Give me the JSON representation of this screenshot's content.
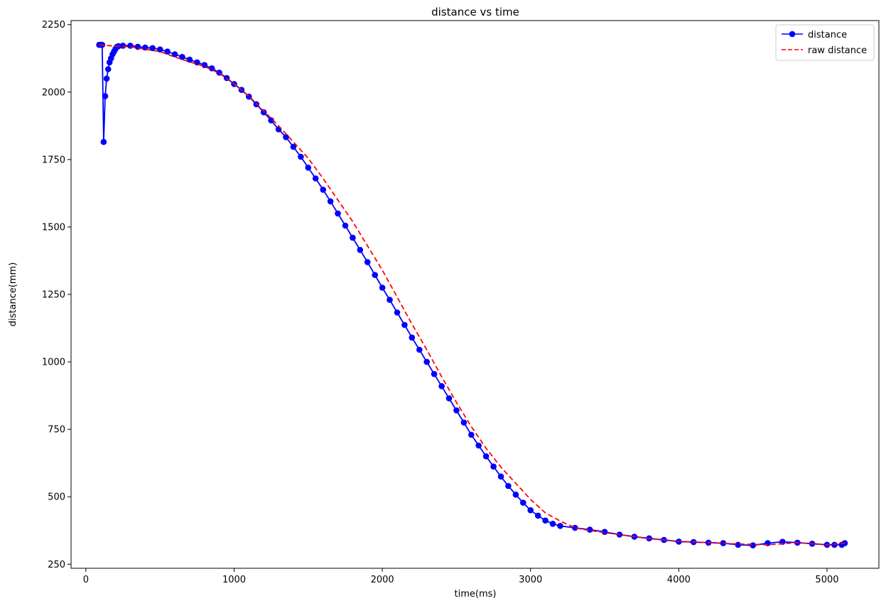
{
  "chart_data": {
    "type": "line",
    "title": "distance vs time",
    "xlabel": "time(ms)",
    "ylabel": "distance(mm)",
    "xlim": [
      -100,
      5350
    ],
    "ylim": [
      235,
      2265
    ],
    "xticks": [
      0,
      1000,
      2000,
      3000,
      4000,
      5000
    ],
    "yticks": [
      250,
      500,
      750,
      1000,
      1250,
      1500,
      1750,
      2000,
      2250
    ],
    "grid": false,
    "legend_position": "top-right",
    "series": [
      {
        "name": "distance",
        "color": "#0000ff",
        "style": "solid",
        "marker": "circle",
        "x": [
          90,
          100,
          110,
          120,
          130,
          140,
          150,
          160,
          170,
          180,
          190,
          200,
          210,
          220,
          250,
          300,
          350,
          400,
          450,
          500,
          550,
          600,
          650,
          700,
          750,
          800,
          850,
          900,
          950,
          1000,
          1050,
          1100,
          1150,
          1200,
          1250,
          1300,
          1350,
          1400,
          1450,
          1500,
          1550,
          1600,
          1650,
          1700,
          1750,
          1800,
          1850,
          1900,
          1950,
          2000,
          2050,
          2100,
          2150,
          2200,
          2250,
          2300,
          2350,
          2400,
          2450,
          2500,
          2550,
          2600,
          2650,
          2700,
          2750,
          2800,
          2850,
          2900,
          2950,
          3000,
          3050,
          3100,
          3150,
          3200,
          3300,
          3400,
          3500,
          3600,
          3700,
          3800,
          3900,
          4000,
          4100,
          4200,
          4300,
          4400,
          4500,
          4600,
          4700,
          4800,
          4900,
          5000,
          5050,
          5100,
          5120
        ],
        "y": [
          2175,
          2175,
          2175,
          1815,
          1985,
          2050,
          2085,
          2110,
          2125,
          2140,
          2150,
          2160,
          2168,
          2170,
          2172,
          2172,
          2168,
          2165,
          2163,
          2158,
          2150,
          2140,
          2130,
          2120,
          2110,
          2100,
          2088,
          2072,
          2052,
          2030,
          2008,
          1983,
          1955,
          1925,
          1895,
          1862,
          1833,
          1797,
          1760,
          1720,
          1680,
          1638,
          1595,
          1550,
          1505,
          1460,
          1415,
          1370,
          1322,
          1275,
          1230,
          1183,
          1137,
          1090,
          1045,
          1000,
          955,
          910,
          865,
          820,
          775,
          730,
          690,
          650,
          612,
          575,
          540,
          508,
          478,
          450,
          430,
          412,
          400,
          392,
          385,
          378,
          370,
          360,
          352,
          346,
          340,
          334,
          332,
          330,
          328,
          322,
          320,
          328,
          333,
          330,
          326,
          322,
          322,
          322,
          328
        ]
      },
      {
        "name": "raw distance",
        "color": "#ff0000",
        "style": "dashed",
        "marker": "none",
        "x": [
          90,
          200,
          300,
          500,
          600,
          700,
          800,
          900,
          1000,
          1100,
          1200,
          1300,
          1400,
          1500,
          1600,
          1700,
          1800,
          1900,
          2000,
          2100,
          2200,
          2300,
          2400,
          2500,
          2600,
          2700,
          2800,
          2900,
          3000,
          3100,
          3200,
          3300,
          3400,
          3600,
          3800,
          4000,
          4200,
          4400,
          4600,
          4800,
          5000,
          5120
        ],
        "y": [
          2175,
          2170,
          2168,
          2150,
          2130,
          2112,
          2095,
          2070,
          2030,
          1985,
          1930,
          1875,
          1815,
          1755,
          1680,
          1600,
          1520,
          1430,
          1340,
          1240,
          1140,
          1045,
          945,
          850,
          760,
          680,
          610,
          550,
          490,
          440,
          410,
          385,
          375,
          360,
          345,
          335,
          330,
          325,
          322,
          330,
          322,
          328
        ]
      }
    ]
  }
}
